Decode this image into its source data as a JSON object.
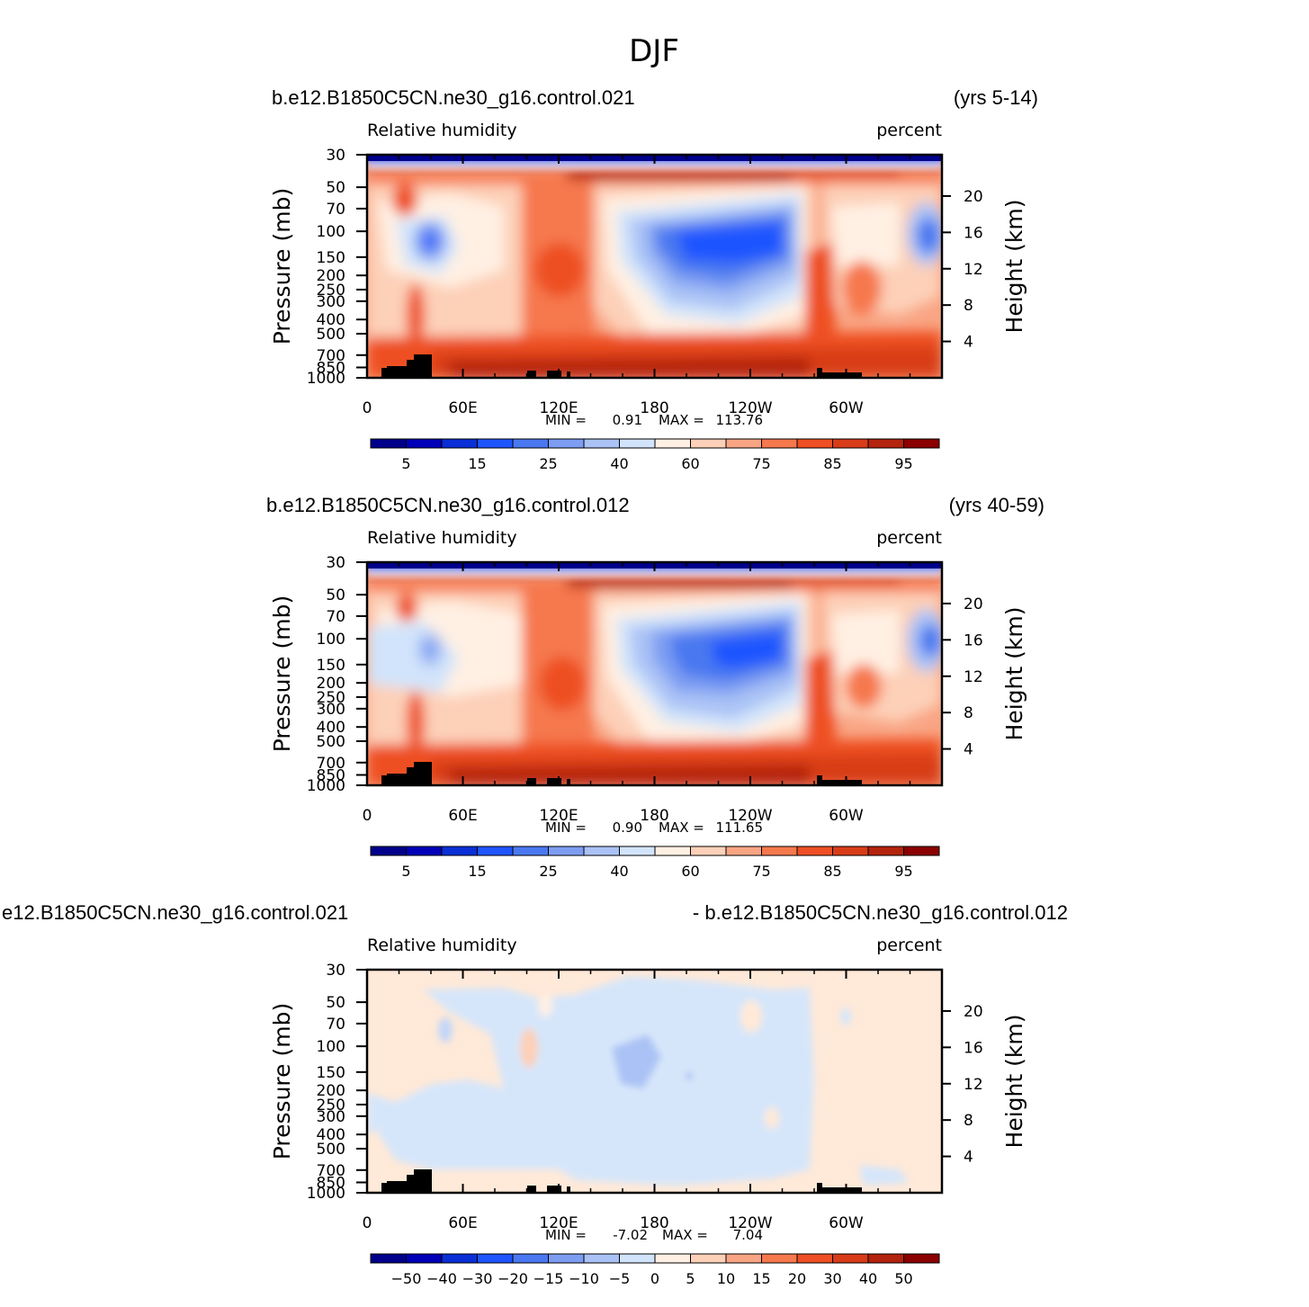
{
  "title": "DJF",
  "colors": {
    "rh_levels": [
      "#00008b",
      "#0000b8",
      "#0a2fd6",
      "#1f55ff",
      "#4a78f0",
      "#7d9df2",
      "#aac2f5",
      "#d2e4fb",
      "#fff0e3",
      "#fdd0b8",
      "#f9a584",
      "#f6784d",
      "#ee4f24",
      "#d83c18",
      "#b4230d",
      "#8b0000"
    ],
    "land": "#000000"
  },
  "chart_data": [
    {
      "type": "heatmap",
      "case": "b.e12.B1850C5CN.ne30_g16.control.021",
      "years": "(yrs 5-14)",
      "field": "Relative humidity",
      "units": "percent",
      "ylabel": "Pressure (mb)",
      "ylabel_right": "Height (km)",
      "x_ticks": [
        "0",
        "60E",
        "120E",
        "180",
        "120W",
        "60W"
      ],
      "y_ticks": [
        "30",
        "50",
        "70",
        "100",
        "150",
        "200",
        "250",
        "300",
        "400",
        "500",
        "700",
        "850",
        "1000"
      ],
      "height_ticks": [
        "20",
        "16",
        "12",
        "8",
        "4"
      ],
      "min_label": "MIN =",
      "min_value": "0.91",
      "max_label": "MAX =",
      "max_value": "113.76",
      "colorbar_labels": [
        "5",
        "15",
        "25",
        "40",
        "60",
        "75",
        "85",
        "95"
      ]
    },
    {
      "type": "heatmap",
      "case": "b.e12.B1850C5CN.ne30_g16.control.012",
      "years": "(yrs 40-59)",
      "field": "Relative humidity",
      "units": "percent",
      "ylabel": "Pressure (mb)",
      "ylabel_right": "Height (km)",
      "x_ticks": [
        "0",
        "60E",
        "120E",
        "180",
        "120W",
        "60W"
      ],
      "y_ticks": [
        "30",
        "50",
        "70",
        "100",
        "150",
        "200",
        "250",
        "300",
        "400",
        "500",
        "700",
        "850",
        "1000"
      ],
      "height_ticks": [
        "20",
        "16",
        "12",
        "8",
        "4"
      ],
      "min_label": "MIN =",
      "min_value": "0.90",
      "max_label": "MAX =",
      "max_value": "111.65",
      "colorbar_labels": [
        "5",
        "15",
        "25",
        "40",
        "60",
        "75",
        "85",
        "95"
      ]
    },
    {
      "type": "heatmap",
      "case": "e12.B1850C5CN.ne30_g16.control.021",
      "years": "- b.e12.B1850C5CN.ne30_g16.control.012",
      "field": "Relative humidity",
      "units": "percent",
      "ylabel": "Pressure (mb)",
      "ylabel_right": "Height (km)",
      "x_ticks": [
        "0",
        "60E",
        "120E",
        "180",
        "120W",
        "60W"
      ],
      "y_ticks": [
        "30",
        "50",
        "70",
        "100",
        "150",
        "200",
        "250",
        "300",
        "400",
        "500",
        "700",
        "850",
        "1000"
      ],
      "height_ticks": [
        "20",
        "16",
        "12",
        "8",
        "4"
      ],
      "min_label": "MIN =",
      "min_value": "-7.02",
      "max_label": "MAX =",
      "max_value": "7.04",
      "colorbar_labels": [
        "−50",
        "−40",
        "−30",
        "−20",
        "−15",
        "−10",
        "−5",
        "0",
        "5",
        "10",
        "15",
        "20",
        "30",
        "40",
        "50"
      ]
    }
  ]
}
